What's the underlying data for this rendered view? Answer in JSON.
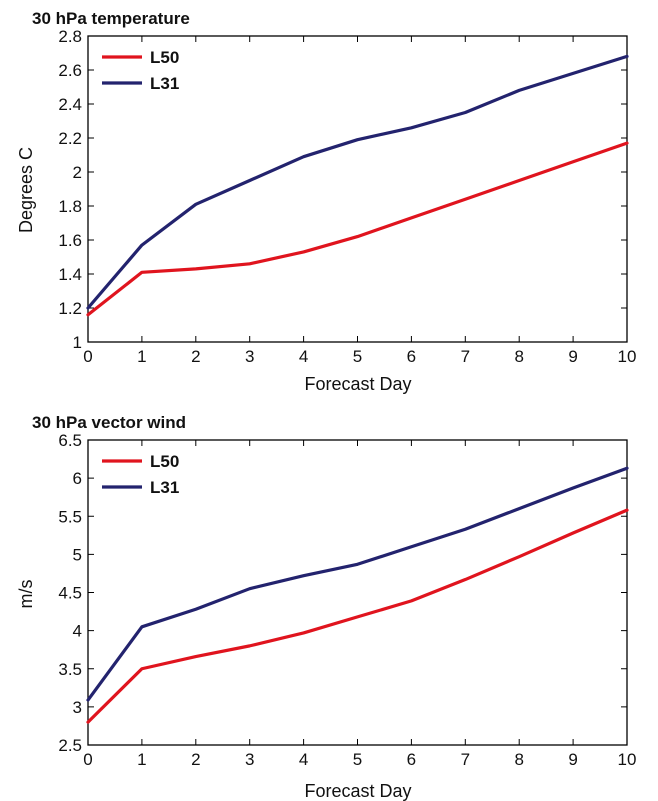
{
  "chart_data": [
    {
      "type": "line",
      "title": "30 hPa temperature",
      "xlabel": "Forecast Day",
      "ylabel": "Degrees C",
      "x": [
        0,
        1,
        2,
        3,
        4,
        5,
        6,
        7,
        8,
        9,
        10
      ],
      "xlim": [
        0,
        10
      ],
      "ylim": [
        1,
        2.8
      ],
      "yticks": [
        1,
        1.2,
        1.4,
        1.6,
        1.8,
        2,
        2.2,
        2.4,
        2.6,
        2.8
      ],
      "ytick_labels": [
        "1",
        "1.2",
        "1.4",
        "1.6",
        "1.8",
        "2",
        "2.2",
        "2.4",
        "2.6",
        "2.8"
      ],
      "legend_position": "top-left",
      "grid": false,
      "series": [
        {
          "name": "L50",
          "color": "#e0141e",
          "values": [
            1.16,
            1.41,
            1.43,
            1.46,
            1.53,
            1.62,
            1.73,
            1.84,
            1.95,
            2.06,
            2.17
          ]
        },
        {
          "name": "L31",
          "color": "#23236e",
          "values": [
            1.2,
            1.57,
            1.81,
            1.95,
            2.09,
            2.19,
            2.26,
            2.35,
            2.48,
            2.58,
            2.68
          ]
        }
      ]
    },
    {
      "type": "line",
      "title": "30 hPa vector wind",
      "xlabel": "Forecast Day",
      "ylabel": "m/s",
      "x": [
        0,
        1,
        2,
        3,
        4,
        5,
        6,
        7,
        8,
        9,
        10
      ],
      "xlim": [
        0,
        10
      ],
      "ylim": [
        2.5,
        6.5
      ],
      "yticks": [
        2.5,
        3,
        3.5,
        4,
        4.5,
        5,
        5.5,
        6,
        6.5
      ],
      "ytick_labels": [
        "2.5",
        "3",
        "3.5",
        "4",
        "4.5",
        "5",
        "5.5",
        "6",
        "6.5"
      ],
      "legend_position": "top-left",
      "grid": false,
      "series": [
        {
          "name": "L50",
          "color": "#e0141e",
          "values": [
            2.8,
            3.5,
            3.66,
            3.8,
            3.97,
            4.18,
            4.39,
            4.67,
            4.97,
            5.28,
            5.58
          ]
        },
        {
          "name": "L31",
          "color": "#23236e",
          "values": [
            3.09,
            4.05,
            4.28,
            4.55,
            4.72,
            4.87,
            5.1,
            5.33,
            5.6,
            5.87,
            6.13
          ]
        }
      ]
    }
  ]
}
